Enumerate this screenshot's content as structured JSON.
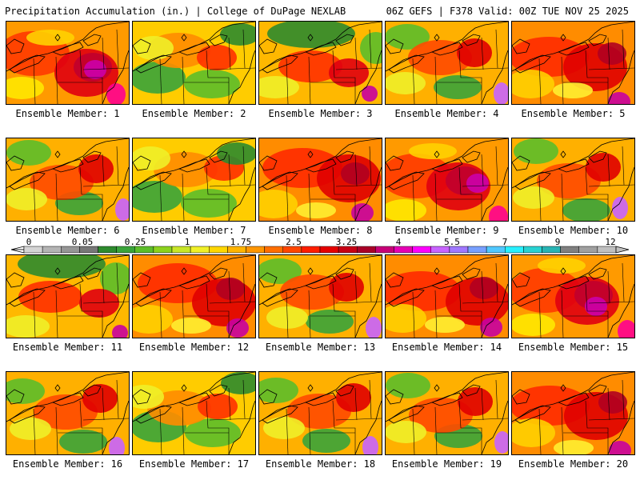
{
  "header": {
    "title_left": "Precipitation Accumulation (in.) | College of DuPage NEXLAB",
    "title_right": "06Z GEFS | F378 Valid: 00Z TUE NOV 25 2025"
  },
  "legend": {
    "ticks": [
      "0",
      "0.05",
      "0.25",
      "1",
      "1.75",
      "2.5",
      "3.25",
      "4",
      "5.5",
      "7",
      "9",
      "12"
    ],
    "colors": [
      "#d4d4d4",
      "#b4b4b4",
      "#969696",
      "#787878",
      "#2e8b2e",
      "#3aa43a",
      "#5cbe2a",
      "#8cd21e",
      "#c8e628",
      "#f0f028",
      "#ffd700",
      "#ffb400",
      "#ff9600",
      "#ff6e00",
      "#ff4600",
      "#ff1e00",
      "#e60000",
      "#c80014",
      "#aa0028",
      "#c80078",
      "#e600b4",
      "#ff00ff",
      "#c864ff",
      "#a078ff",
      "#78a0ff",
      "#50c8ff",
      "#28f0ff",
      "#28d2d2",
      "#28b4b4",
      "#808080",
      "#a0a0a0",
      "#c0c0c0"
    ]
  },
  "members": [
    {
      "label": "Ensemble Member: 1",
      "scheme": "wet-purple"
    },
    {
      "label": "Ensemble Member: 2",
      "scheme": "dry-green"
    },
    {
      "label": "Ensemble Member: 3",
      "scheme": "green-north"
    },
    {
      "label": "Ensemble Member: 4",
      "scheme": "mixed"
    },
    {
      "label": "Ensemble Member: 5",
      "scheme": "wet-red"
    },
    {
      "label": "Ensemble Member: 6",
      "scheme": "mixed"
    },
    {
      "label": "Ensemble Member: 7",
      "scheme": "dry-green"
    },
    {
      "label": "Ensemble Member: 8",
      "scheme": "wet-red"
    },
    {
      "label": "Ensemble Member: 9",
      "scheme": "wet-purple"
    },
    {
      "label": "Ensemble Member: 10",
      "scheme": "mixed"
    },
    {
      "label": "Ensemble Member: 11",
      "scheme": "green-north"
    },
    {
      "label": "Ensemble Member: 12",
      "scheme": "wet-red"
    },
    {
      "label": "Ensemble Member: 13",
      "scheme": "mixed"
    },
    {
      "label": "Ensemble Member: 14",
      "scheme": "wet-red"
    },
    {
      "label": "Ensemble Member: 15",
      "scheme": "wet-purple"
    },
    {
      "label": "Ensemble Member: 16",
      "scheme": "mixed"
    },
    {
      "label": "Ensemble Member: 17",
      "scheme": "dry-green"
    },
    {
      "label": "Ensemble Member: 18",
      "scheme": "mixed"
    },
    {
      "label": "Ensemble Member: 19",
      "scheme": "mixed"
    },
    {
      "label": "Ensemble Member: 20",
      "scheme": "wet-red"
    }
  ]
}
